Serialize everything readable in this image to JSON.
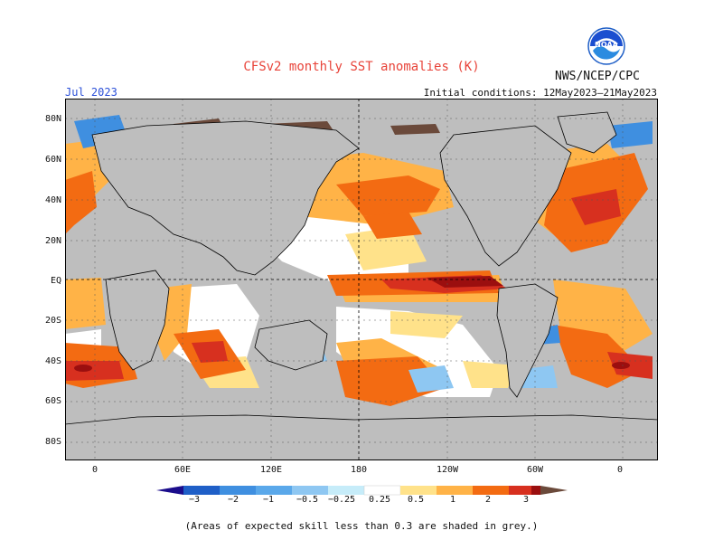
{
  "header": {
    "title": "CFSv2 monthly SST anomalies (K)",
    "organization": "NWS/NCEP/CPC",
    "valid_month": "Jul 2023",
    "initial_conditions": "Initial conditions: 12May2023–21May2023",
    "logo_text": "NOAA"
  },
  "map": {
    "latitude_labels": [
      "80N",
      "60N",
      "40N",
      "20N",
      "EQ",
      "20S",
      "40S",
      "60S",
      "80S"
    ],
    "longitude_labels": [
      "0",
      "60E",
      "120E",
      "180",
      "120W",
      "60W",
      "0"
    ],
    "colors": {
      "land": "#bebebe",
      "neutral_ocean": "#ffffff",
      "grey_low_skill": "#bebebe",
      "coast": "#000000"
    }
  },
  "colorbar": {
    "ticks": [
      "−3",
      "−2",
      "−1",
      "−0.5",
      "−0.25",
      "0.25",
      "0.5",
      "1",
      "2",
      "3"
    ],
    "colors": [
      "#1b0d8c",
      "#1f5fc7",
      "#3f8fe0",
      "#8ec7f2",
      "#c6ecf9",
      "#ffffff",
      "#ffe28a",
      "#ffb347",
      "#f36b12",
      "#d7301f",
      "#9b0f0f",
      "#6b4a3b"
    ]
  },
  "footnote": "(Areas of expected skill less than 0.3 are shaded in grey.)"
}
